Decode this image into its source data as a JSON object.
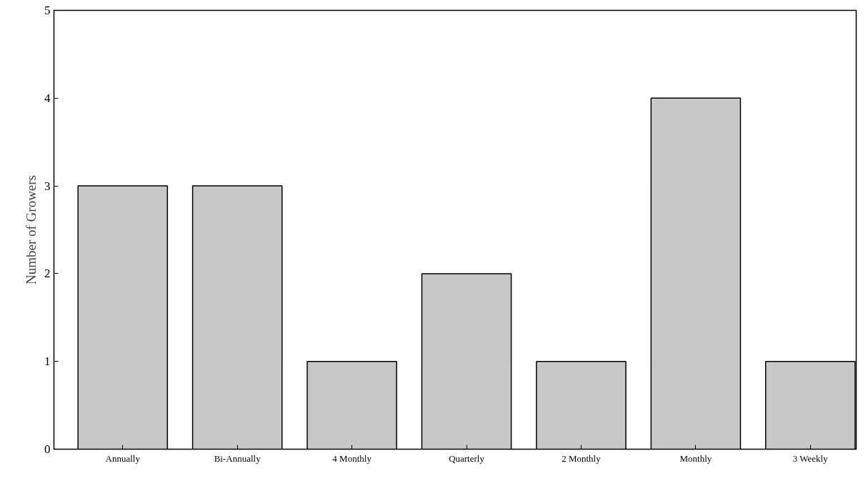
{
  "chart_data": {
    "type": "bar",
    "ylabel": "Number of Growers",
    "categories": [
      "Annually",
      "Bi-Annually",
      "4 Monthly",
      "Quarterly",
      "2 Monthly",
      "Monthly",
      "3 Weekly"
    ],
    "values": [
      3,
      3,
      1,
      2,
      1,
      4,
      1
    ],
    "color": "#c8c8c8",
    "ylim": [
      0,
      5
    ],
    "yticks": [
      0,
      1,
      2,
      3,
      4,
      5
    ],
    "grid": false
  }
}
